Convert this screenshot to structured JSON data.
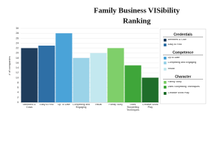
{
  "chart_data": {
    "type": "bar",
    "title": "Family Business VISibility",
    "title_line2": "Ranking",
    "y_label": "# of companies",
    "categories": [
      "Members & Cows",
      "Easy to Find",
      "Up To Date",
      "Compelling and Engaging",
      "Visual",
      "Family Story",
      "Uses Storytelling Techniques",
      "Creative Word Play"
    ],
    "values": [
      22,
      23,
      28,
      18,
      20,
      22,
      15,
      10
    ],
    "colors": [
      "#1f3d5c",
      "#2e6fa6",
      "#4aa3d8",
      "#9bd3e8",
      "#c3e8ef",
      "#7fcf6a",
      "#3fa63a",
      "#1f6e2a"
    ],
    "ylim": [
      0,
      30
    ],
    "yticks": [
      0,
      2,
      4,
      6,
      8,
      10,
      12,
      14,
      16,
      18,
      20,
      22,
      24,
      26,
      28,
      30
    ],
    "grid": true,
    "legend": [
      {
        "name": "Credentials",
        "items": [
          {
            "label": "Members & Cow",
            "color": "#1f3d5c"
          },
          {
            "label": "Easy to Find",
            "color": "#2e6fa6"
          }
        ]
      },
      {
        "name": "Competence",
        "items": [
          {
            "label": "Up to Date",
            "color": "#4aa3d8"
          },
          {
            "label": "Compelling and Engaging",
            "color": "#9bd3e8"
          },
          {
            "label": "Visual",
            "color": "#c3e8ef"
          }
        ]
      },
      {
        "name": "Character",
        "items": [
          {
            "label": "Family Story",
            "color": "#7fcf6a"
          },
          {
            "label": "Uses Storytelling Techniques",
            "color": "#3fa63a"
          },
          {
            "label": "Creative Word Play",
            "color": "#1f6e2a"
          }
        ]
      }
    ]
  }
}
